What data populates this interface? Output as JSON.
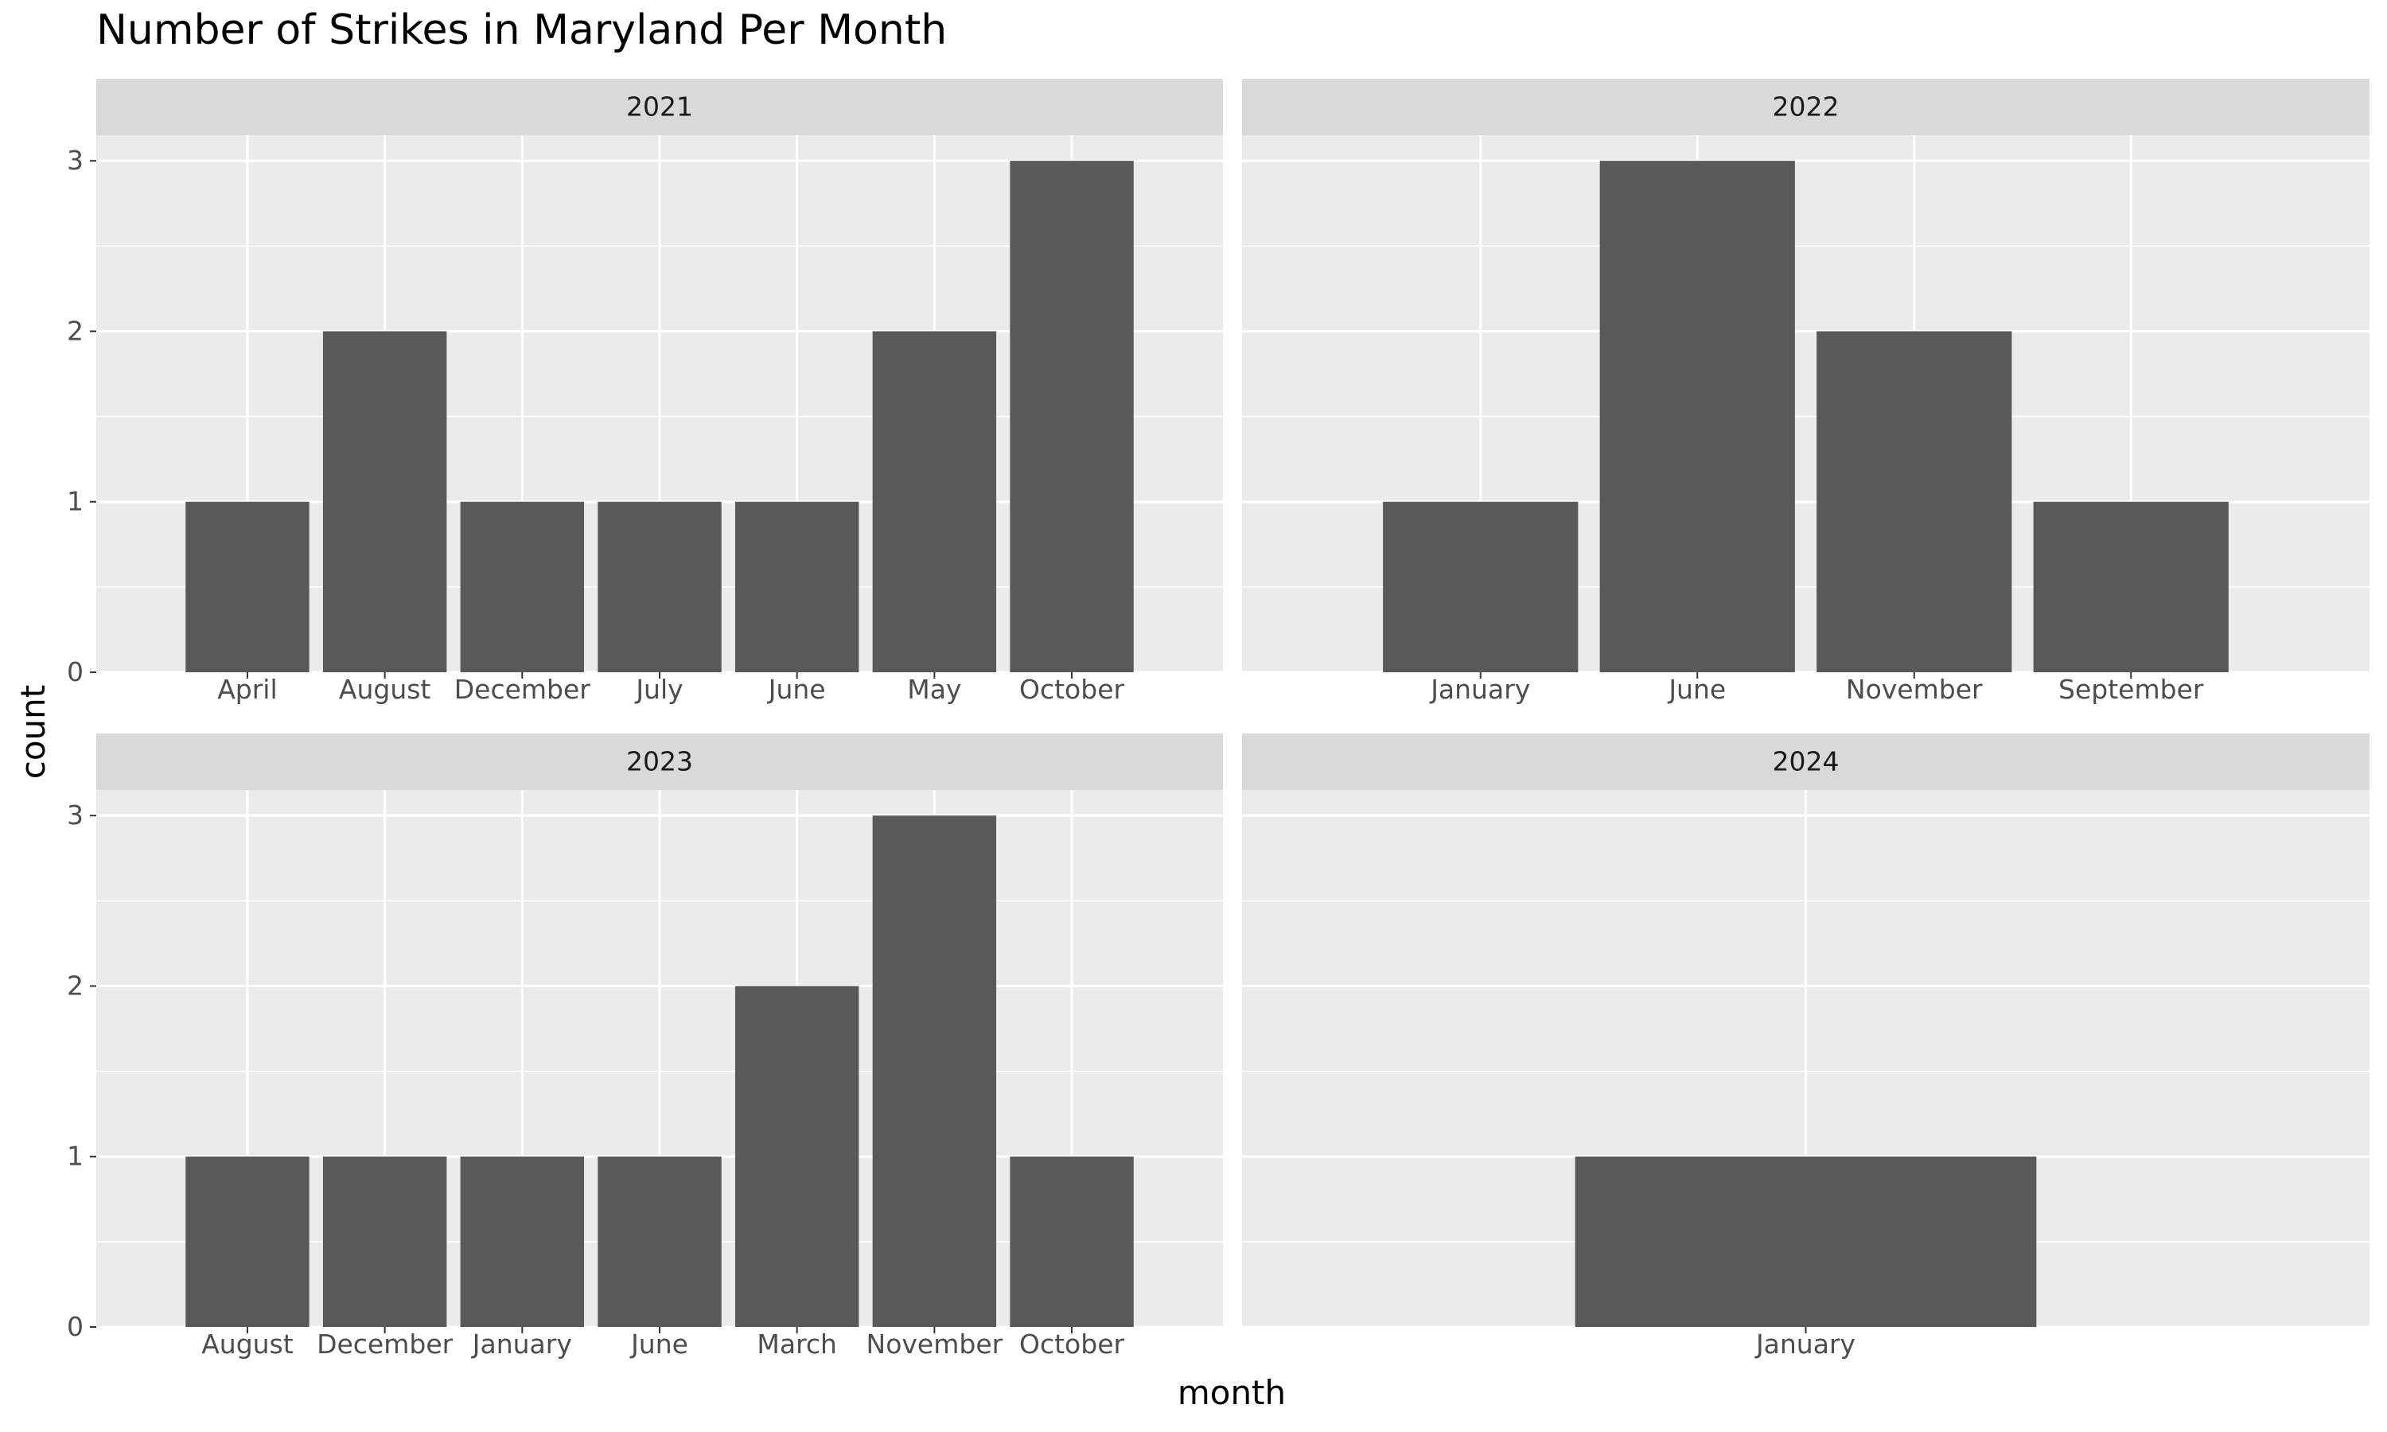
{
  "chart_data": {
    "type": "bar",
    "title": "Number of Strikes in Maryland Per Month",
    "xlabel": "month",
    "ylabel": "count",
    "ylim": [
      0,
      3.15
    ],
    "y_ticks": [
      0,
      1,
      2,
      3
    ],
    "grid": true,
    "panels": [
      {
        "label": "2021",
        "categories": [
          "April",
          "August",
          "December",
          "July",
          "June",
          "May",
          "October"
        ],
        "values": [
          1,
          2,
          1,
          1,
          1,
          2,
          3
        ]
      },
      {
        "label": "2022",
        "categories": [
          "January",
          "June",
          "November",
          "September"
        ],
        "values": [
          1,
          3,
          2,
          1
        ]
      },
      {
        "label": "2023",
        "categories": [
          "August",
          "December",
          "January",
          "June",
          "March",
          "November",
          "October"
        ],
        "values": [
          1,
          1,
          1,
          1,
          2,
          3,
          1
        ]
      },
      {
        "label": "2024",
        "categories": [
          "January"
        ],
        "values": [
          1
        ]
      }
    ]
  },
  "colors": {
    "bar": "#595959",
    "panel_background": "#ebebeb",
    "strip_background": "#d9d9d9",
    "grid": "#ffffff",
    "tick_text": "#4d4d4d"
  }
}
